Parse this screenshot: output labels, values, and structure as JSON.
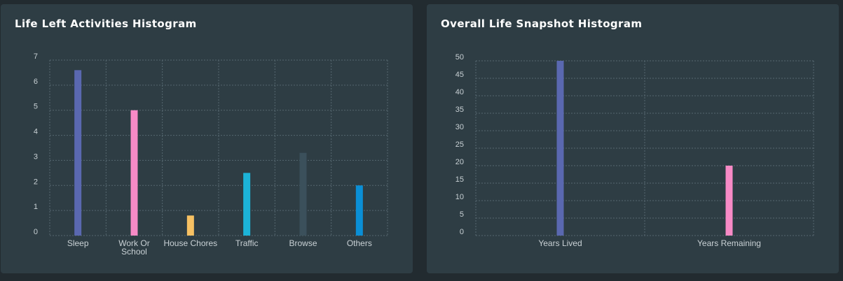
{
  "panels": {
    "left": {
      "title": "Life Left Activities Histogram"
    },
    "right": {
      "title": "Overall Life Snapshot Histogram"
    }
  },
  "chart_data": [
    {
      "type": "bar",
      "title": "Life Left Activities Histogram",
      "categories": [
        [
          "Sleep"
        ],
        [
          "Work Or",
          "School"
        ],
        [
          "House Chores"
        ],
        [
          "Traffic"
        ],
        [
          "Browse"
        ],
        [
          "Others"
        ]
      ],
      "values": [
        6.6,
        5.0,
        0.8,
        2.5,
        3.3,
        2.0
      ],
      "colors": [
        "#5a68b0",
        "#f78ac6",
        "#f7c163",
        "#1cb3d8",
        "#3b505b",
        "#0a8fd6"
      ],
      "ylim": [
        0,
        7
      ],
      "yticks": [
        0,
        1,
        2,
        3,
        4,
        5,
        6,
        7
      ],
      "grid": true,
      "xlabel": "",
      "ylabel": ""
    },
    {
      "type": "bar",
      "title": "Overall Life Snapshot Histogram",
      "categories": [
        [
          "Years Lived"
        ],
        [
          "Years Remaining"
        ]
      ],
      "values": [
        50,
        20
      ],
      "colors": [
        "#5a68b0",
        "#f78ac6"
      ],
      "ylim": [
        0,
        50
      ],
      "yticks": [
        0,
        5,
        10,
        15,
        20,
        25,
        30,
        35,
        40,
        45,
        50
      ],
      "grid": true,
      "xlabel": "",
      "ylabel": ""
    }
  ]
}
